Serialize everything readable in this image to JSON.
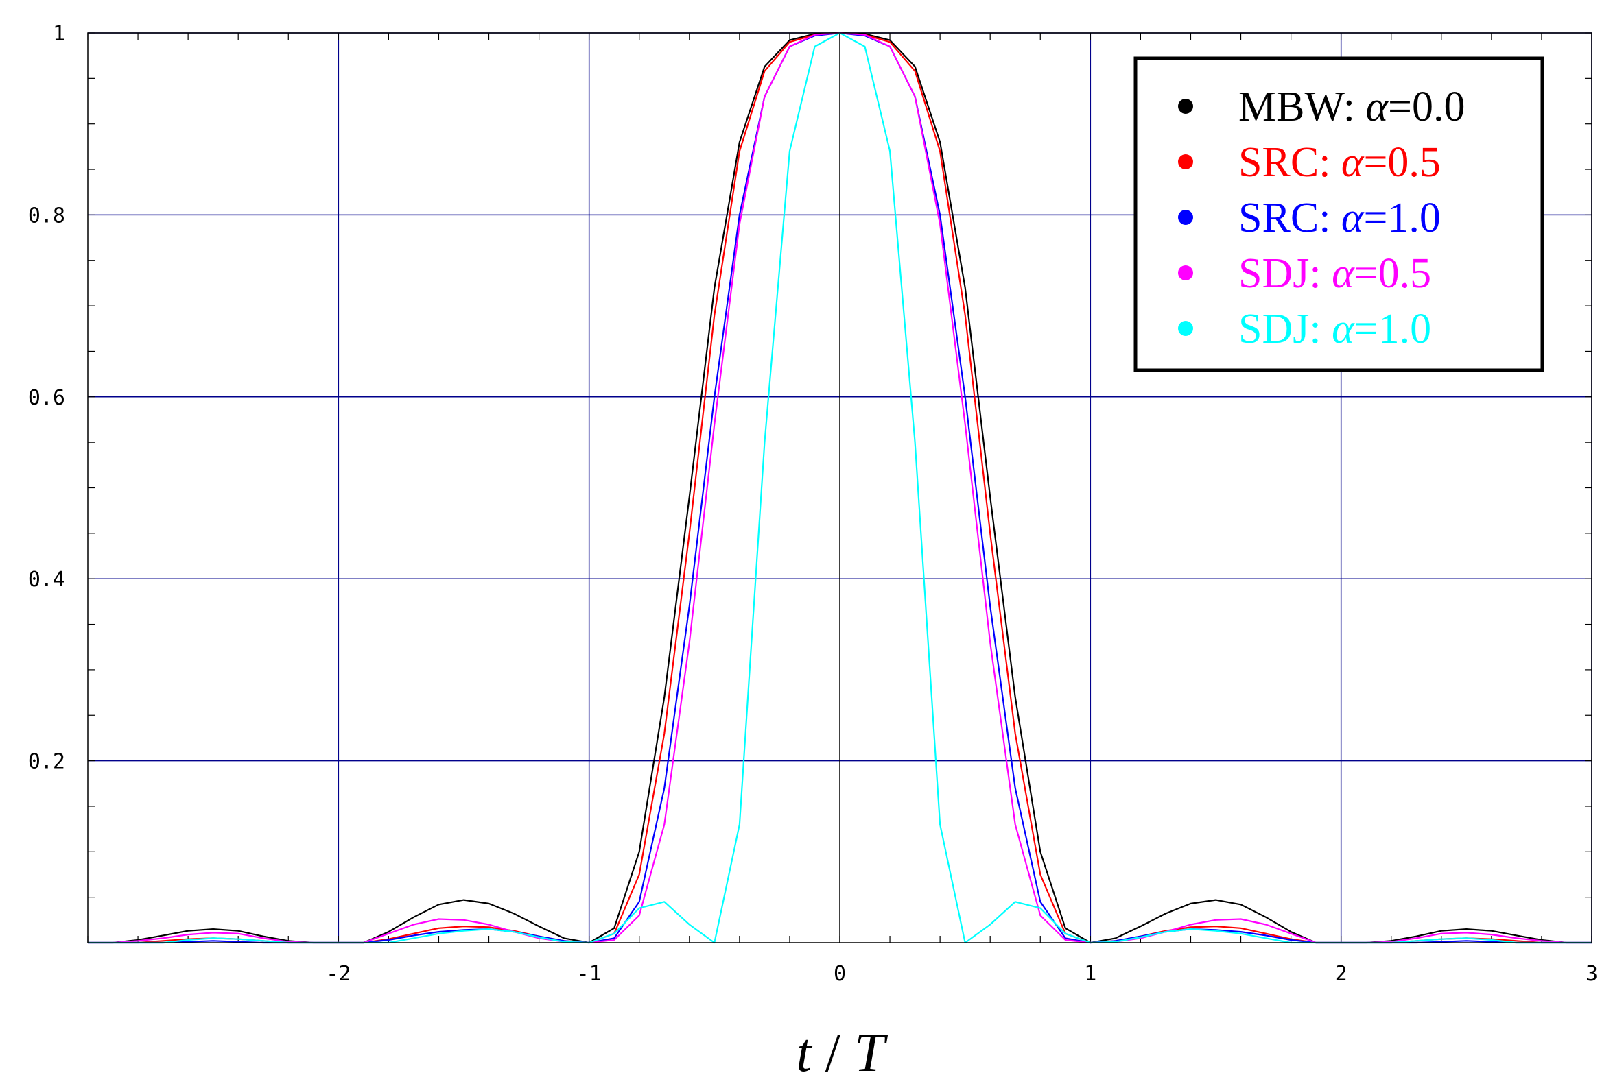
{
  "chart_data": {
    "type": "line",
    "title": "",
    "xlabel_parts": [
      "t",
      " / ",
      "T"
    ],
    "ylabel": "",
    "xlim": [
      -3,
      3
    ],
    "ylim": [
      0,
      1
    ],
    "xticks": [
      -2,
      -1,
      0,
      1,
      2,
      3
    ],
    "xtick_labels": [
      "-2",
      "-1",
      "0",
      "1",
      "2",
      "3"
    ],
    "yticks": [
      0.2,
      0.4,
      0.6,
      0.8,
      1
    ],
    "ytick_labels": [
      "0.2",
      "0.4",
      "0.6",
      "0.8",
      "1"
    ],
    "grid": true,
    "grid_color": "#00008b",
    "legend_position": "top-right",
    "x": [
      -3.0,
      -2.9,
      -2.8,
      -2.7,
      -2.6,
      -2.5,
      -2.4,
      -2.3,
      -2.2,
      -2.1,
      -2.0,
      -1.9,
      -1.8,
      -1.7,
      -1.6,
      -1.5,
      -1.4,
      -1.3,
      -1.2,
      -1.1,
      -1.0,
      -0.9,
      -0.8,
      -0.7,
      -0.6,
      -0.5,
      -0.4,
      -0.3,
      -0.2,
      -0.1,
      0.0,
      0.1,
      0.2,
      0.3,
      0.4,
      0.5,
      0.6,
      0.7,
      0.8,
      0.9,
      1.0,
      1.1,
      1.2,
      1.3,
      1.4,
      1.5,
      1.6,
      1.7,
      1.8,
      1.9,
      2.0,
      2.1,
      2.2,
      2.3,
      2.4,
      2.5,
      2.6,
      2.7,
      2.8,
      2.9,
      3.0
    ],
    "series": [
      {
        "name": "MBW",
        "label_prefix": "MBW: ",
        "alpha_label": "α",
        "label_suffix": "=0.0",
        "color": "#000000",
        "values": [
          0.0,
          0.0,
          0.003,
          0.008,
          0.013,
          0.015,
          0.013,
          0.007,
          0.002,
          0.0,
          0.0,
          0.0,
          0.012,
          0.028,
          0.042,
          0.047,
          0.043,
          0.032,
          0.018,
          0.005,
          0.0,
          0.016,
          0.1,
          0.27,
          0.49,
          0.72,
          0.88,
          0.963,
          0.992,
          0.999,
          1.0,
          0.999,
          0.992,
          0.963,
          0.88,
          0.72,
          0.49,
          0.27,
          0.1,
          0.016,
          0.0,
          0.005,
          0.018,
          0.032,
          0.043,
          0.047,
          0.042,
          0.028,
          0.012,
          0.0,
          0.0,
          0.0,
          0.002,
          0.007,
          0.013,
          0.015,
          0.013,
          0.008,
          0.003,
          0.0,
          0.0
        ]
      },
      {
        "name": "SRC a=0.5",
        "label_prefix": "SRC: ",
        "alpha_label": "α",
        "label_suffix": "=0.5",
        "color": "#ff0000",
        "values": [
          0.0,
          0.0,
          0.0,
          0.002,
          0.004,
          0.005,
          0.004,
          0.002,
          0.0,
          0.0,
          0.0,
          0.0,
          0.004,
          0.01,
          0.016,
          0.018,
          0.017,
          0.013,
          0.007,
          0.002,
          0.0,
          0.01,
          0.075,
          0.23,
          0.45,
          0.69,
          0.87,
          0.958,
          0.99,
          0.998,
          1.0,
          0.998,
          0.99,
          0.958,
          0.87,
          0.69,
          0.45,
          0.23,
          0.075,
          0.01,
          0.0,
          0.002,
          0.007,
          0.013,
          0.017,
          0.018,
          0.016,
          0.01,
          0.004,
          0.0,
          0.0,
          0.0,
          0.0,
          0.002,
          0.004,
          0.005,
          0.004,
          0.002,
          0.0,
          0.0,
          0.0
        ]
      },
      {
        "name": "SRC a=1.0",
        "label_prefix": "SRC: ",
        "alpha_label": "α",
        "label_suffix": "=1.0",
        "color": "#0000ff",
        "values": [
          0.0,
          0.0,
          0.0,
          0.0,
          0.001,
          0.002,
          0.001,
          0.0,
          0.0,
          0.0,
          0.0,
          0.0,
          0.003,
          0.008,
          0.012,
          0.014,
          0.015,
          0.012,
          0.007,
          0.002,
          0.0,
          0.005,
          0.045,
          0.17,
          0.37,
          0.6,
          0.8,
          0.93,
          0.985,
          0.997,
          1.0,
          0.997,
          0.985,
          0.93,
          0.8,
          0.6,
          0.37,
          0.17,
          0.045,
          0.005,
          0.0,
          0.002,
          0.007,
          0.012,
          0.015,
          0.014,
          0.012,
          0.008,
          0.003,
          0.0,
          0.0,
          0.0,
          0.0,
          0.0,
          0.001,
          0.002,
          0.001,
          0.0,
          0.0,
          0.0,
          0.0
        ]
      },
      {
        "name": "SDJ a=0.5",
        "label_prefix": "SDJ: ",
        "alpha_label": "α",
        "label_suffix": "=0.5",
        "color": "#ff00ff",
        "values": [
          0.0,
          0.0,
          0.002,
          0.005,
          0.009,
          0.011,
          0.01,
          0.005,
          0.001,
          0.0,
          0.0,
          0.0,
          0.01,
          0.02,
          0.026,
          0.025,
          0.02,
          0.012,
          0.005,
          0.001,
          0.0,
          0.003,
          0.03,
          0.13,
          0.33,
          0.57,
          0.79,
          0.93,
          0.985,
          0.998,
          1.0,
          0.998,
          0.985,
          0.93,
          0.79,
          0.57,
          0.33,
          0.13,
          0.03,
          0.003,
          0.0,
          0.001,
          0.005,
          0.012,
          0.02,
          0.025,
          0.026,
          0.02,
          0.01,
          0.0,
          0.0,
          0.0,
          0.001,
          0.005,
          0.01,
          0.011,
          0.009,
          0.005,
          0.002,
          0.0,
          0.0
        ]
      },
      {
        "name": "SDJ a=1.0",
        "label_prefix": "SDJ: ",
        "alpha_label": "α",
        "label_suffix": "=1.0",
        "color": "#00ffff",
        "values": [
          0.0,
          0.0,
          0.0,
          0.0,
          0.003,
          0.005,
          0.004,
          0.002,
          0.0,
          0.0,
          0.0,
          0.0,
          0.0,
          0.005,
          0.01,
          0.013,
          0.015,
          0.012,
          0.006,
          0.001,
          0.0,
          0.01,
          0.038,
          0.045,
          0.02,
          0.0,
          0.13,
          0.55,
          0.87,
          0.985,
          1.0,
          0.985,
          0.87,
          0.55,
          0.13,
          0.0,
          0.02,
          0.045,
          0.038,
          0.01,
          0.0,
          0.001,
          0.006,
          0.012,
          0.015,
          0.013,
          0.01,
          0.005,
          0.0,
          0.0,
          0.0,
          0.0,
          0.0,
          0.002,
          0.004,
          0.005,
          0.003,
          0.0,
          0.0,
          0.0,
          0.0
        ]
      }
    ]
  }
}
